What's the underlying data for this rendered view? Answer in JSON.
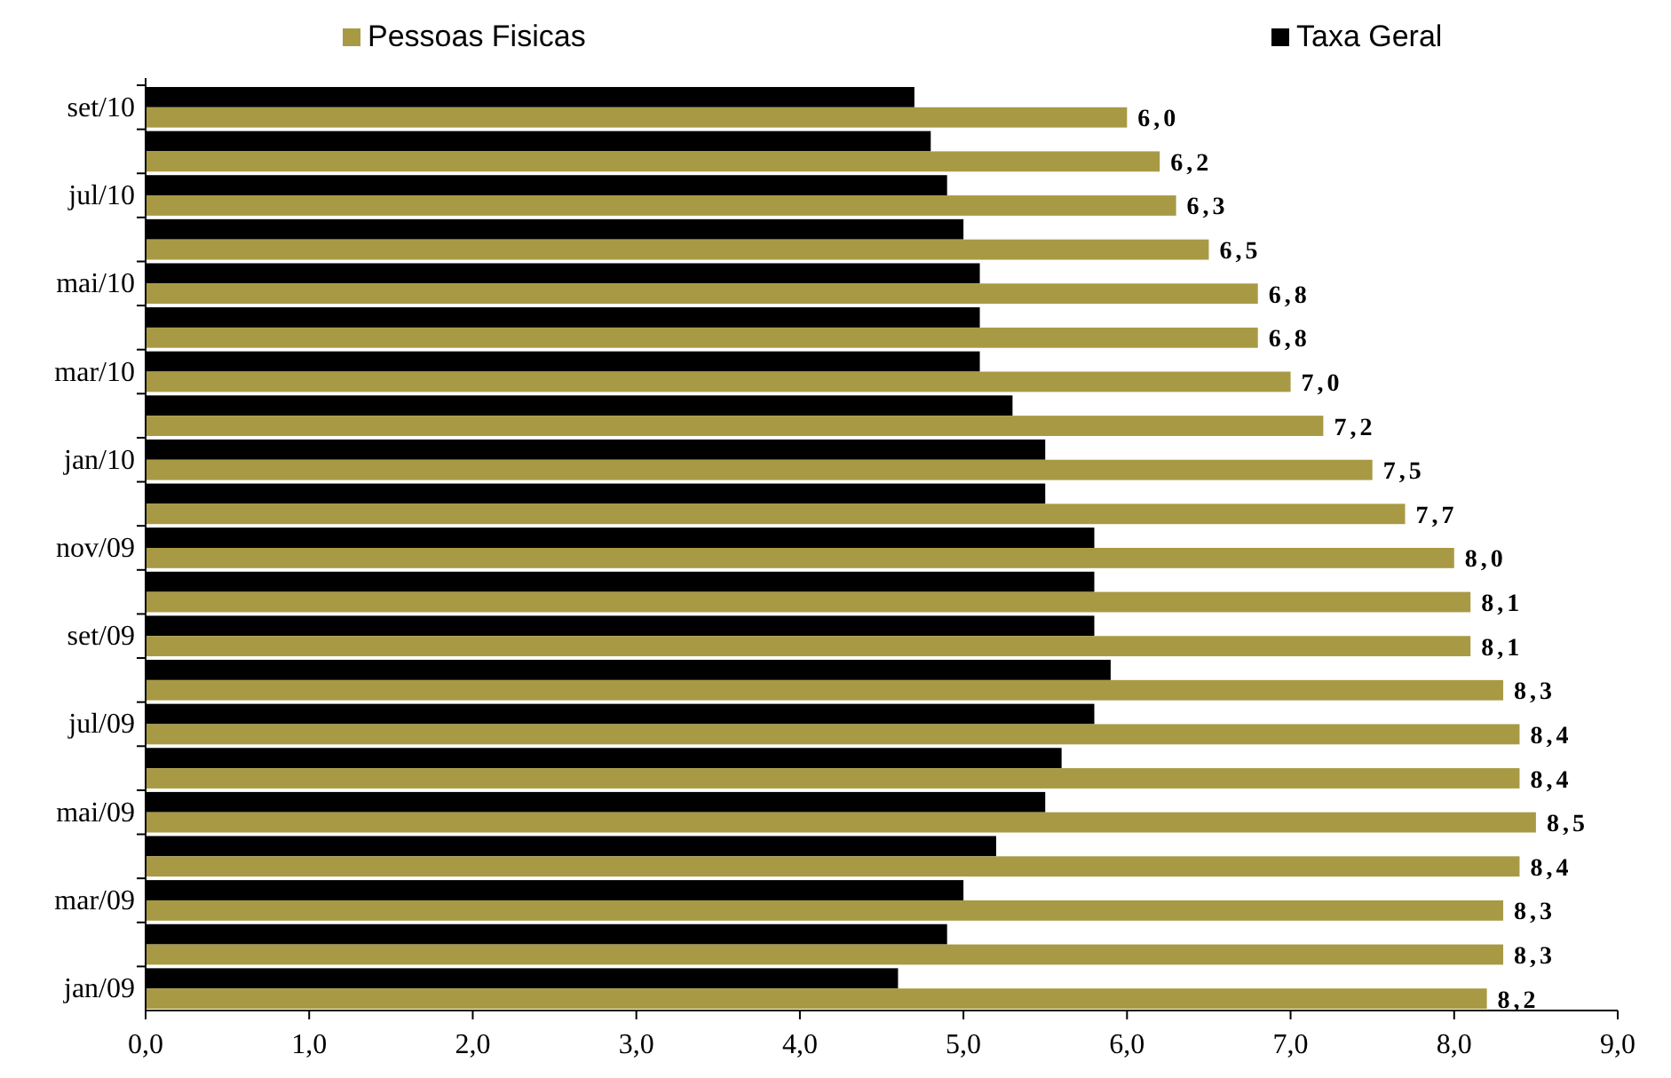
{
  "chart_data": {
    "type": "bar",
    "orientation": "horizontal",
    "categories": [
      "set/10",
      null,
      "jul/10",
      null,
      "mai/10",
      null,
      "mar/10",
      null,
      "jan/10",
      null,
      "nov/09",
      null,
      "set/09",
      null,
      "jul/09",
      null,
      "mai/09",
      null,
      "mar/09",
      null,
      "jan/09"
    ],
    "series": [
      {
        "name": "Taxa Geral",
        "color": "#000000",
        "values": [
          4.7,
          4.8,
          4.9,
          5.0,
          5.1,
          5.1,
          5.1,
          5.3,
          5.5,
          5.5,
          5.8,
          5.8,
          5.8,
          5.9,
          5.8,
          5.6,
          5.5,
          5.2,
          5.0,
          4.9,
          4.6
        ]
      },
      {
        "name": "Pessoas Fisicas",
        "color": "#a89a44",
        "values": [
          6.0,
          6.2,
          6.3,
          6.5,
          6.8,
          6.8,
          7.0,
          7.2,
          7.5,
          7.7,
          8.0,
          8.1,
          8.1,
          8.3,
          8.4,
          8.4,
          8.5,
          8.4,
          8.3,
          8.3,
          8.2
        ],
        "value_labels": [
          "6,0",
          "6,2",
          "6,3",
          "6,5",
          "6,8",
          "6,8",
          "7,0",
          "7,2",
          "7,5",
          "7,7",
          "8,0",
          "8,1",
          "8,1",
          "8,3",
          "8,4",
          "8,4",
          "8,5",
          "8,4",
          "8,3",
          "8,3",
          "8,2"
        ]
      }
    ],
    "xlim": [
      0,
      9
    ],
    "xticks": [
      {
        "value": 0,
        "label": "0,0"
      },
      {
        "value": 1,
        "label": "1,0"
      },
      {
        "value": 2,
        "label": "2,0"
      },
      {
        "value": 3,
        "label": "3,0"
      },
      {
        "value": 4,
        "label": "4,0"
      },
      {
        "value": 5,
        "label": "5,0"
      },
      {
        "value": 6,
        "label": "6,0"
      },
      {
        "value": 7,
        "label": "7,0"
      },
      {
        "value": 8,
        "label": "8,0"
      },
      {
        "value": 9,
        "label": "9,0"
      }
    ],
    "legend": "top"
  }
}
